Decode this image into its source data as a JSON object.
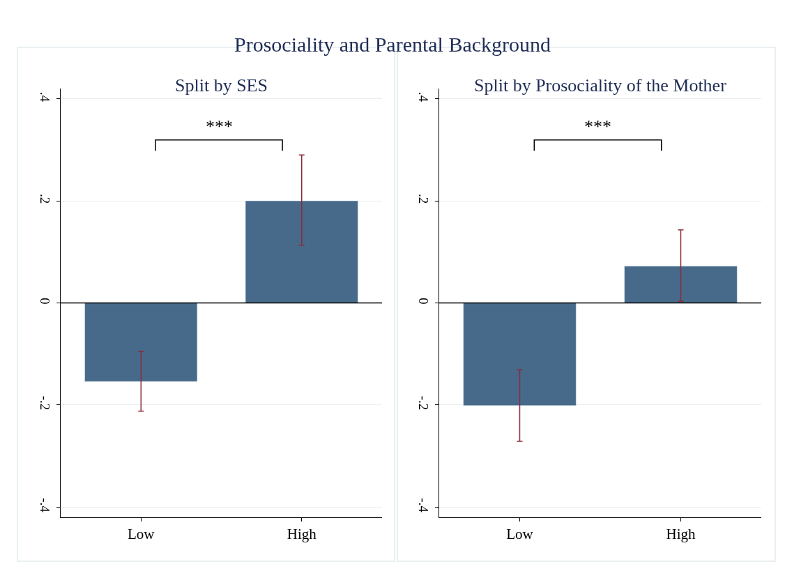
{
  "chart_data": [
    {
      "type": "bar",
      "title": "Prosociality and Parental Background",
      "subtitle": "Split by SES",
      "categories": [
        "Low",
        "High"
      ],
      "series": [
        {
          "color": "#476a8a",
          "values": [
            -0.154,
            0.2
          ],
          "errors": [
            [
              -0.212,
              -0.095
            ],
            [
              0.113,
              0.29
            ]
          ]
        }
      ],
      "ylim": [
        -0.42,
        0.42
      ],
      "yticks": [
        {
          "value": -0.4,
          "label": "-.4"
        },
        {
          "value": -0.2,
          "label": "-.2"
        },
        0,
        {
          "value": 0.2,
          "label": ".2"
        },
        {
          "value": 0.4,
          "label": ".4"
        }
      ],
      "grid": "y",
      "ref_lines": [
        {
          "axis": "y",
          "value": 0,
          "color": "#000000"
        }
      ],
      "annotations": [
        "***"
      ]
    },
    {
      "type": "bar",
      "subtitle": "Split by Prosociality of the Mother",
      "categories": [
        "Low",
        "High"
      ],
      "series": [
        {
          "color": "#476a8a",
          "values": [
            -0.201,
            0.072
          ],
          "errors": [
            [
              -0.271,
              -0.131
            ],
            [
              0.003,
              0.143
            ]
          ]
        }
      ],
      "ylim": [
        -0.42,
        0.42
      ],
      "yticks": [
        {
          "value": -0.4,
          "label": "-.4"
        },
        {
          "value": -0.2,
          "label": "-.2"
        },
        0,
        {
          "value": 0.2,
          "label": ".2"
        },
        {
          "value": 0.4,
          "label": ".4"
        }
      ],
      "grid": "y",
      "ref_lines": [
        {
          "axis": "y",
          "value": 0,
          "color": "#000000"
        }
      ],
      "annotations": [
        "***"
      ]
    }
  ]
}
